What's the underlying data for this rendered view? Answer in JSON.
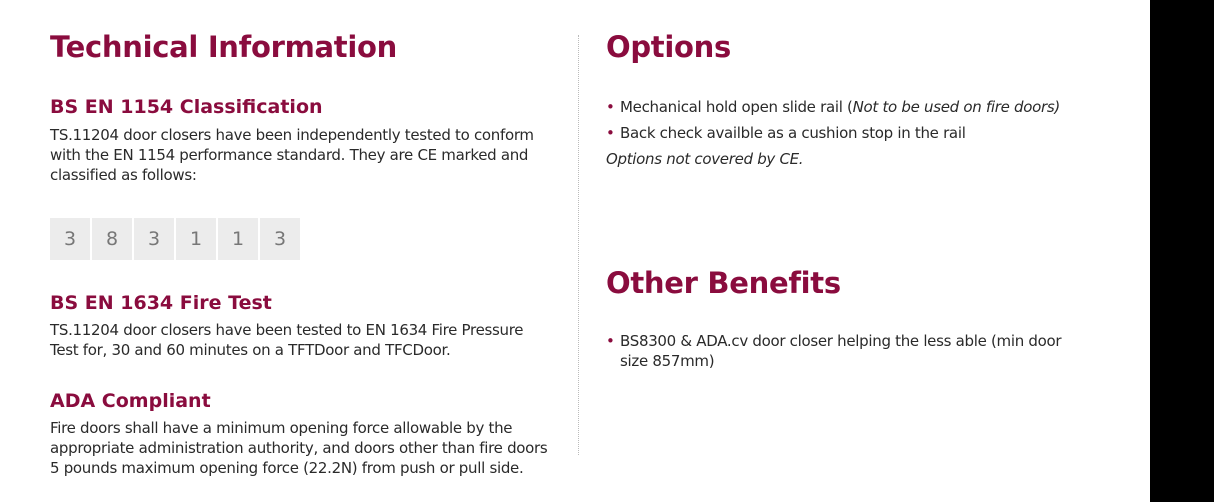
{
  "left": {
    "title": "Technical Information",
    "sections": [
      {
        "heading": "BS EN 1154 Classification",
        "body": "TS.11204 door closers have been independently tested to conform with the EN 1154 performance standard. They are CE marked and classified as follows:"
      },
      {
        "heading": "BS EN 1634 Fire Test",
        "body": "TS.11204 door closers have been tested to EN 1634 Fire Pressure Test for, 30 and 60 minutes on a TFTDoor and TFCDoor."
      },
      {
        "heading": "ADA Compliant",
        "body": "Fire doors shall have a minimum opening force allowable by the appropriate administration authority, and doors other than fire doors 5 pounds maximum opening force (22.2N) from push or pull side."
      }
    ],
    "classification": [
      "3",
      "8",
      "3",
      "1",
      "1",
      "3"
    ]
  },
  "options": {
    "title": "Options",
    "items": [
      {
        "text": "Mechanical hold open slide rail (",
        "italic": "Not to be used on fire doors)"
      },
      {
        "text": "Back check availble as a cushion stop in the rail"
      }
    ],
    "note": "Options not covered by CE."
  },
  "benefits": {
    "title": "Other Benefits",
    "items": [
      "BS8300 & ADA.cv door closer helping the less able (min door size 857mm)"
    ]
  }
}
